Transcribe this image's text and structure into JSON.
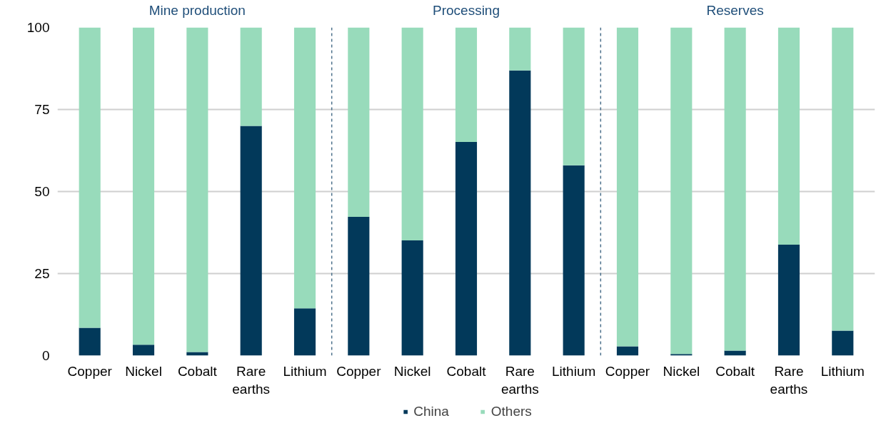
{
  "chart_data": {
    "type": "bar",
    "stacked": true,
    "categories": [
      "Copper",
      "Nickel",
      "Cobalt",
      "Rare earths",
      "Lithium",
      "Copper",
      "Nickel",
      "Cobalt",
      "Rare earths",
      "Lithium",
      "Copper",
      "Nickel",
      "Cobalt",
      "Rare earths",
      "Lithium"
    ],
    "series": [
      {
        "name": "China",
        "color": "#02395a",
        "values": [
          8.5,
          3.3,
          1.1,
          70,
          14.4,
          42.3,
          35.1,
          65.1,
          86.9,
          58,
          2.8,
          0.5,
          1.5,
          33.8,
          7.6
        ]
      },
      {
        "name": "Others",
        "color": "#98dbbb",
        "values": [
          91.5,
          96.7,
          98.9,
          30,
          85.6,
          57.7,
          64.9,
          34.9,
          13.1,
          42,
          97.2,
          99.5,
          98.5,
          66.2,
          92.4
        ]
      }
    ],
    "annotations": [
      "Mine production",
      "Processing",
      "Reserves"
    ],
    "ylim": [
      0,
      100
    ],
    "yticks": [
      0,
      25,
      50,
      75,
      100
    ],
    "grid": "y",
    "legend": "bottom"
  }
}
